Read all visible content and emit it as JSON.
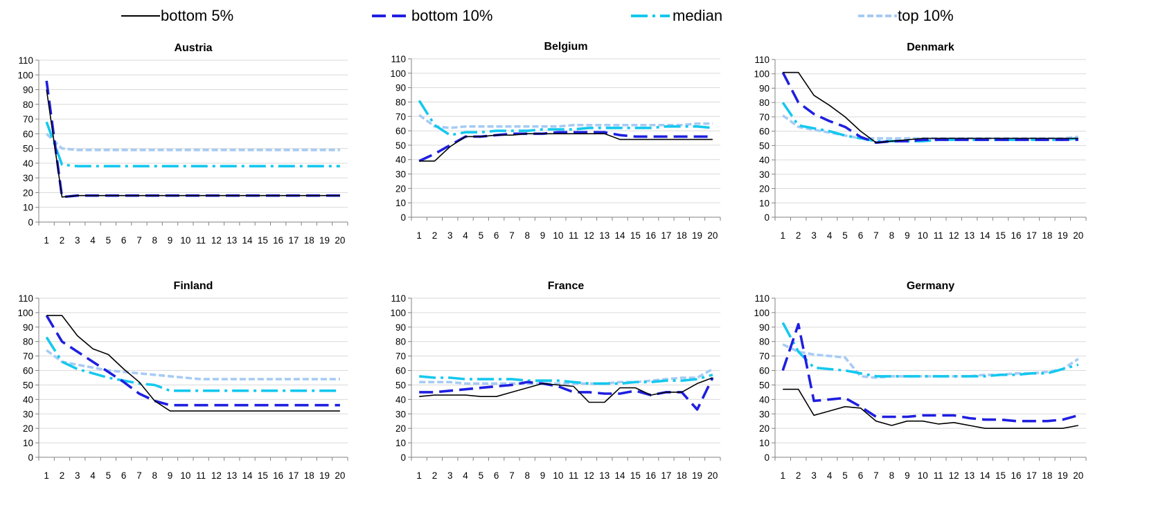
{
  "colors": {
    "bottom5": "#000000",
    "bottom10": "#1f1fe0",
    "median": "#14c8ee",
    "top10": "#a6cbf4",
    "grid": "#d9d9d9",
    "axis": "#808080"
  },
  "legend": [
    {
      "key": "bottom5",
      "label": "bottom 5%"
    },
    {
      "key": "bottom10",
      "label": "bottom 10%"
    },
    {
      "key": "median",
      "label": "median"
    },
    {
      "key": "top10",
      "label": "top 10%"
    }
  ],
  "chart_data": [
    {
      "type": "line",
      "title": "Austria",
      "x": [
        1,
        2,
        3,
        4,
        5,
        6,
        7,
        8,
        9,
        10,
        11,
        12,
        13,
        14,
        15,
        16,
        17,
        18,
        19,
        20
      ],
      "ylim": [
        0,
        110
      ],
      "yticks": [
        0,
        10,
        20,
        30,
        40,
        50,
        60,
        70,
        80,
        90,
        100,
        110
      ],
      "grid": true,
      "series": [
        {
          "name": "bottom 5%",
          "key": "bottom5",
          "values": [
            90,
            17,
            18,
            18,
            18,
            18,
            18,
            18,
            18,
            18,
            18,
            18,
            18,
            18,
            18,
            18,
            18,
            18,
            18,
            18
          ]
        },
        {
          "name": "bottom 10%",
          "key": "bottom10",
          "values": [
            96,
            17,
            18,
            18,
            18,
            18,
            18,
            18,
            18,
            18,
            18,
            18,
            18,
            18,
            18,
            18,
            18,
            18,
            18,
            18
          ]
        },
        {
          "name": "median",
          "key": "median",
          "values": [
            68,
            39,
            38,
            38,
            38,
            38,
            38,
            38,
            38,
            38,
            38,
            38,
            38,
            38,
            38,
            38,
            38,
            38,
            38,
            38
          ]
        },
        {
          "name": "top 10%",
          "key": "top10",
          "values": [
            60,
            50,
            49,
            49,
            49,
            49,
            49,
            49,
            49,
            49,
            49,
            49,
            49,
            49,
            49,
            49,
            49,
            49,
            49,
            49
          ]
        }
      ]
    },
    {
      "type": "line",
      "title": "Belgium",
      "x": [
        1,
        2,
        3,
        4,
        5,
        6,
        7,
        8,
        9,
        10,
        11,
        12,
        13,
        14,
        15,
        16,
        17,
        18,
        19,
        20
      ],
      "ylim": [
        0,
        110
      ],
      "yticks": [
        0,
        10,
        20,
        30,
        40,
        50,
        60,
        70,
        80,
        90,
        100,
        110
      ],
      "grid": true,
      "series": [
        {
          "name": "bottom 5%",
          "key": "bottom5",
          "values": [
            39,
            39,
            49,
            56,
            56,
            57,
            57,
            58,
            58,
            58,
            58,
            58,
            58,
            54,
            54,
            54,
            54,
            54,
            54,
            54
          ]
        },
        {
          "name": "bottom 10%",
          "key": "bottom10",
          "values": [
            39,
            44,
            50,
            56,
            56,
            57,
            58,
            58,
            58,
            59,
            59,
            59,
            59,
            57,
            56,
            56,
            56,
            56,
            56,
            56
          ]
        },
        {
          "name": "median",
          "key": "median",
          "values": [
            81,
            64,
            57,
            59,
            59,
            60,
            60,
            60,
            61,
            61,
            61,
            62,
            62,
            62,
            62,
            62,
            63,
            63,
            63,
            62
          ]
        },
        {
          "name": "top 10%",
          "key": "top10",
          "values": [
            71,
            63,
            62,
            63,
            63,
            63,
            63,
            63,
            63,
            63,
            64,
            64,
            64,
            64,
            64,
            64,
            64,
            64,
            65,
            65
          ]
        }
      ]
    },
    {
      "type": "line",
      "title": "Denmark",
      "x": [
        1,
        2,
        3,
        4,
        5,
        6,
        7,
        8,
        9,
        10,
        11,
        12,
        13,
        14,
        15,
        16,
        17,
        18,
        19,
        20
      ],
      "ylim": [
        0,
        110
      ],
      "yticks": [
        0,
        10,
        20,
        30,
        40,
        50,
        60,
        70,
        80,
        90,
        100,
        110
      ],
      "grid": true,
      "series": [
        {
          "name": "bottom 5%",
          "key": "bottom5",
          "values": [
            101,
            101,
            85,
            78,
            70,
            60,
            52,
            53,
            54,
            55,
            55,
            55,
            55,
            55,
            55,
            55,
            55,
            55,
            55,
            55
          ]
        },
        {
          "name": "bottom 10%",
          "key": "bottom10",
          "values": [
            101,
            80,
            72,
            67,
            63,
            56,
            52,
            53,
            53,
            54,
            54,
            54,
            54,
            54,
            54,
            54,
            54,
            54,
            54,
            54
          ]
        },
        {
          "name": "median",
          "key": "median",
          "values": [
            80,
            64,
            62,
            60,
            57,
            55,
            53,
            53,
            53,
            53,
            54,
            54,
            54,
            54,
            54,
            54,
            54,
            54,
            54,
            55
          ]
        },
        {
          "name": "top 10%",
          "key": "top10",
          "values": [
            71,
            63,
            61,
            59,
            57,
            55,
            55,
            55,
            55,
            55,
            55,
            55,
            55,
            55,
            55,
            55,
            55,
            55,
            55,
            56
          ]
        }
      ]
    },
    {
      "type": "line",
      "title": "Finland",
      "x": [
        1,
        2,
        3,
        4,
        5,
        6,
        7,
        8,
        9,
        10,
        11,
        12,
        13,
        14,
        15,
        16,
        17,
        18,
        19,
        20
      ],
      "ylim": [
        0,
        110
      ],
      "yticks": [
        0,
        10,
        20,
        30,
        40,
        50,
        60,
        70,
        80,
        90,
        100,
        110
      ],
      "grid": true,
      "series": [
        {
          "name": "bottom 5%",
          "key": "bottom5",
          "values": [
            98,
            98,
            84,
            75,
            71,
            61,
            52,
            39,
            32,
            32,
            32,
            32,
            32,
            32,
            32,
            32,
            32,
            32,
            32,
            32
          ]
        },
        {
          "name": "bottom 10%",
          "key": "bottom10",
          "values": [
            98,
            80,
            73,
            66,
            59,
            52,
            44,
            39,
            36,
            36,
            36,
            36,
            36,
            36,
            36,
            36,
            36,
            36,
            36,
            36
          ]
        },
        {
          "name": "median",
          "key": "median",
          "values": [
            83,
            66,
            61,
            58,
            55,
            53,
            51,
            50,
            46,
            46,
            46,
            46,
            46,
            46,
            46,
            46,
            46,
            46,
            46,
            46
          ]
        },
        {
          "name": "top 10%",
          "key": "top10",
          "values": [
            74,
            66,
            64,
            62,
            60,
            59,
            58,
            57,
            56,
            55,
            54,
            54,
            54,
            54,
            54,
            54,
            54,
            54,
            54,
            54
          ]
        }
      ]
    },
    {
      "type": "line",
      "title": "France",
      "x": [
        1,
        2,
        3,
        4,
        5,
        6,
        7,
        8,
        9,
        10,
        11,
        12,
        13,
        14,
        15,
        16,
        17,
        18,
        19,
        20
      ],
      "ylim": [
        0,
        110
      ],
      "yticks": [
        0,
        10,
        20,
        30,
        40,
        50,
        60,
        70,
        80,
        90,
        100,
        110
      ],
      "grid": true,
      "series": [
        {
          "name": "bottom 5%",
          "key": "bottom5",
          "values": [
            42,
            43,
            43,
            43,
            42,
            42,
            45,
            48,
            51,
            50,
            49,
            38,
            38,
            48,
            48,
            43,
            45,
            45,
            51,
            55
          ]
        },
        {
          "name": "bottom 10%",
          "key": "bottom10",
          "values": [
            45,
            45,
            46,
            47,
            48,
            49,
            50,
            52,
            51,
            49,
            45,
            45,
            44,
            44,
            46,
            43,
            45,
            45,
            33,
            55
          ]
        },
        {
          "name": "median",
          "key": "median",
          "values": [
            56,
            55,
            55,
            54,
            54,
            54,
            54,
            53,
            53,
            53,
            52,
            51,
            51,
            51,
            52,
            52,
            53,
            53,
            54,
            57
          ]
        },
        {
          "name": "top 10%",
          "key": "top10",
          "values": [
            52,
            52,
            52,
            51,
            51,
            51,
            51,
            51,
            51,
            51,
            51,
            51,
            51,
            52,
            52,
            53,
            54,
            55,
            55,
            61
          ]
        }
      ]
    },
    {
      "type": "line",
      "title": "Germany",
      "x": [
        1,
        2,
        3,
        4,
        5,
        6,
        7,
        8,
        9,
        10,
        11,
        12,
        13,
        14,
        15,
        16,
        17,
        18,
        19,
        20
      ],
      "ylim": [
        0,
        110
      ],
      "yticks": [
        0,
        10,
        20,
        30,
        40,
        50,
        60,
        70,
        80,
        90,
        100,
        110
      ],
      "grid": true,
      "series": [
        {
          "name": "bottom 5%",
          "key": "bottom5",
          "values": [
            47,
            47,
            29,
            32,
            35,
            34,
            25,
            22,
            25,
            25,
            23,
            24,
            22,
            20,
            20,
            20,
            20,
            20,
            20,
            22
          ]
        },
        {
          "name": "bottom 10%",
          "key": "bottom10",
          "values": [
            60,
            92,
            39,
            40,
            41,
            35,
            28,
            28,
            28,
            29,
            29,
            29,
            27,
            26,
            26,
            25,
            25,
            25,
            26,
            29
          ]
        },
        {
          "name": "median",
          "key": "median",
          "values": [
            93,
            73,
            62,
            61,
            60,
            58,
            56,
            56,
            56,
            56,
            56,
            56,
            56,
            56,
            57,
            57,
            58,
            58,
            61,
            64
          ]
        },
        {
          "name": "top 10%",
          "key": "top10",
          "values": [
            78,
            73,
            71,
            70,
            69,
            56,
            55,
            56,
            56,
            56,
            56,
            56,
            56,
            57,
            57,
            58,
            58,
            59,
            61,
            68
          ]
        }
      ]
    }
  ]
}
